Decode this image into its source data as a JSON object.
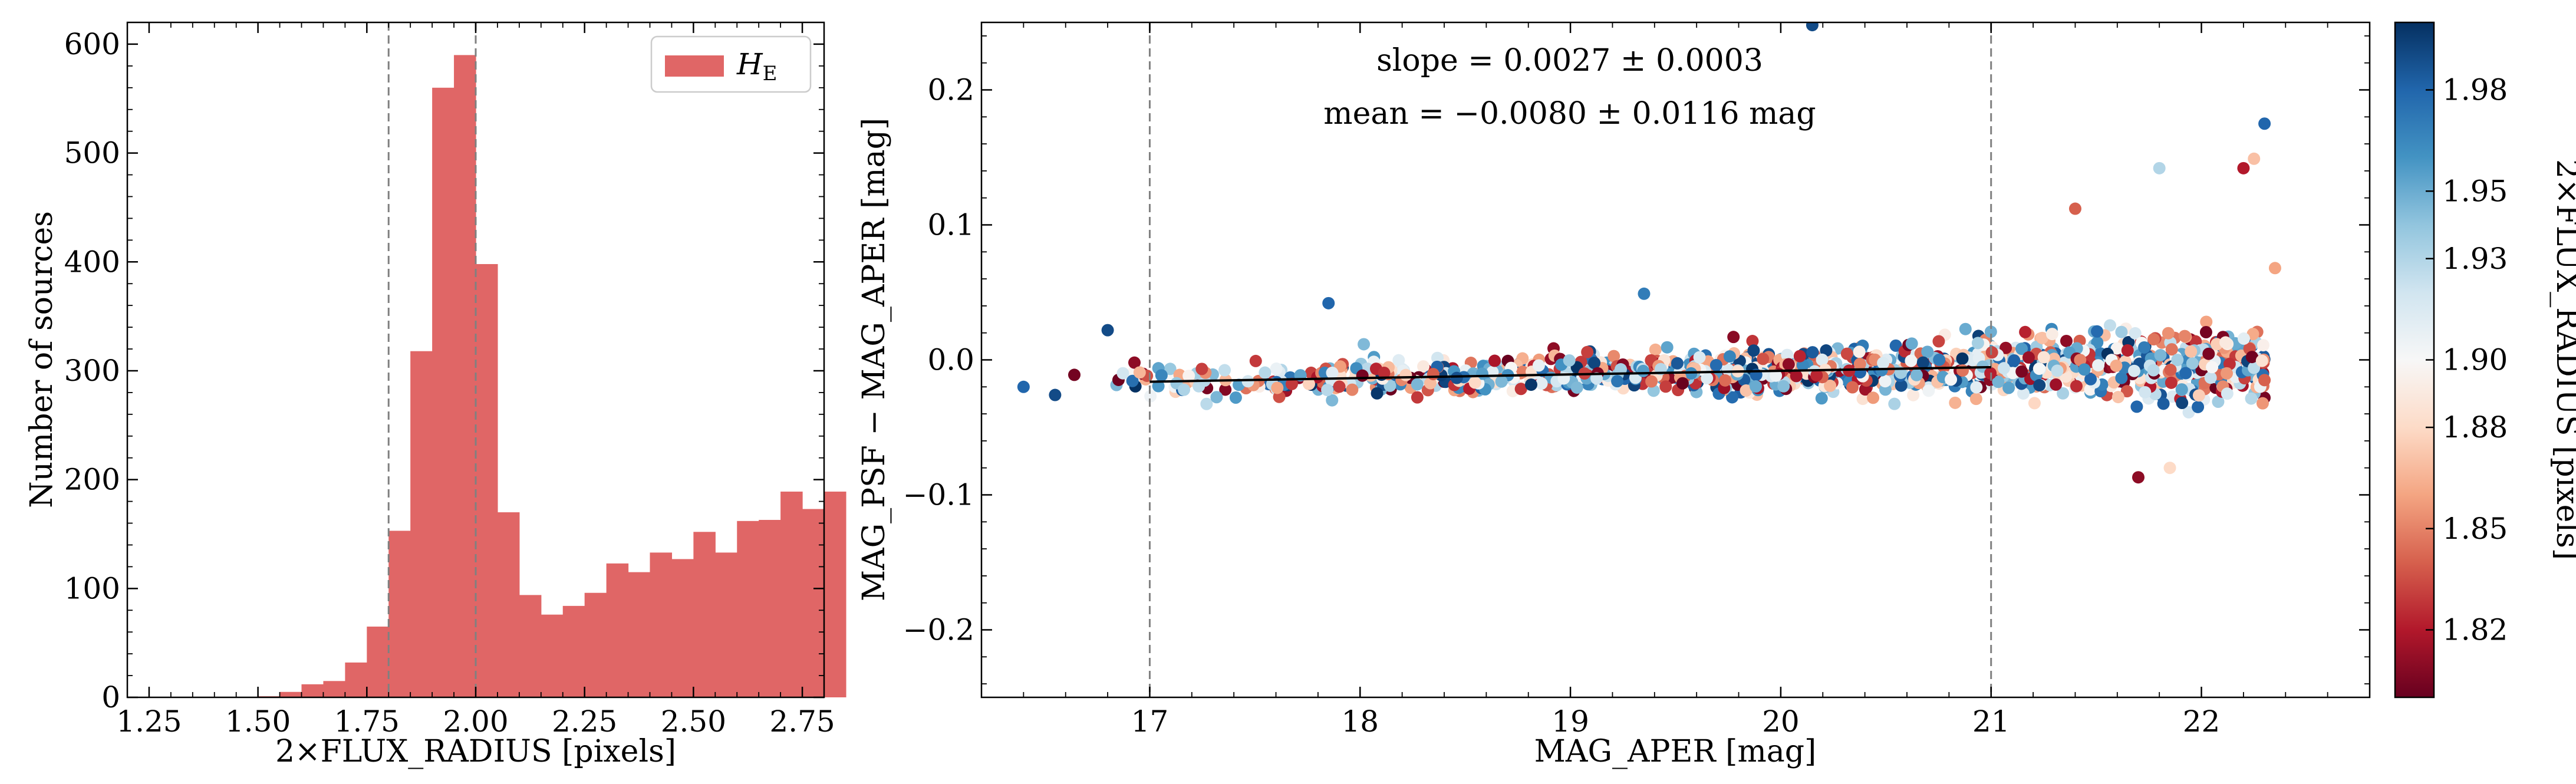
{
  "colors": {
    "hist_fill": "#e06666",
    "ref_line": "#808080",
    "fit_line": "#000000",
    "cmap": [
      "#67001f",
      "#b2182b",
      "#d6604d",
      "#f4a582",
      "#fddbc7",
      "#f7f7f7",
      "#d1e5f0",
      "#92c5de",
      "#4393c3",
      "#2166ac",
      "#053061"
    ]
  },
  "chart_data": [
    {
      "type": "bar",
      "name": "radius-histogram",
      "xlabel": "2×FLUX_RADIUS [pixels]",
      "ylabel": "Number of sources",
      "xlim": [
        1.2,
        2.8
      ],
      "ylim": [
        0,
        620
      ],
      "xticks": [
        1.25,
        1.5,
        1.75,
        2.0,
        2.25,
        2.5,
        2.75
      ],
      "xtick_labels": [
        "1.25",
        "1.50",
        "1.75",
        "2.00",
        "2.25",
        "2.50",
        "2.75"
      ],
      "yticks": [
        0,
        100,
        200,
        300,
        400,
        500,
        600
      ],
      "ytick_labels": [
        "0",
        "100",
        "200",
        "300",
        "400",
        "500",
        "600"
      ],
      "legend": {
        "label_main": "H",
        "label_sub": "E",
        "position": "top-right"
      },
      "bin_start": 1.2,
      "bin_width": 0.05,
      "values": [
        0,
        0,
        0,
        0,
        0,
        0,
        1,
        5,
        12,
        15,
        32,
        65,
        153,
        318,
        560,
        590,
        398,
        170,
        94,
        76,
        84,
        96,
        123,
        115,
        133,
        127,
        152,
        133,
        162,
        163,
        189,
        173,
        189
      ],
      "ref_lines_x": [
        1.8,
        2.0
      ]
    },
    {
      "type": "scatter",
      "name": "mag-scatter",
      "xlabel": "MAG_APER [mag]",
      "ylabel": "MAG_PSF − MAG_APER [mag]",
      "xlim": [
        16.2,
        22.8
      ],
      "ylim": [
        -0.25,
        0.25
      ],
      "xticks": [
        17,
        18,
        19,
        20,
        21,
        22
      ],
      "xtick_labels": [
        "17",
        "18",
        "19",
        "20",
        "21",
        "22"
      ],
      "yticks": [
        -0.2,
        -0.1,
        0.0,
        0.1,
        0.2
      ],
      "ytick_labels": [
        "−0.2",
        "−0.1",
        "0.0",
        "0.1",
        "0.2"
      ],
      "annotations": [
        "slope = 0.0027 ± 0.0003",
        "mean = −0.0080 ± 0.0116 mag"
      ],
      "ref_lines_x": [
        17,
        21
      ],
      "fit_line": {
        "x": [
          17,
          21
        ],
        "y": [
          -0.0162,
          -0.0054
        ]
      },
      "color_range": [
        1.8,
        2.0
      ],
      "highlight_points": [
        {
          "x": 20.15,
          "y": 0.248,
          "c": 1.99
        },
        {
          "x": 22.3,
          "y": 0.175,
          "c": 1.98
        },
        {
          "x": 16.8,
          "y": 0.022,
          "c": 1.99
        },
        {
          "x": 17.85,
          "y": 0.042,
          "c": 1.98
        },
        {
          "x": 19.35,
          "y": 0.049,
          "c": 1.97
        },
        {
          "x": 21.7,
          "y": -0.087,
          "c": 1.81
        },
        {
          "x": 21.4,
          "y": 0.112,
          "c": 1.84
        },
        {
          "x": 21.8,
          "y": 0.142,
          "c": 1.93
        },
        {
          "x": 22.2,
          "y": 0.142,
          "c": 1.82
        },
        {
          "x": 22.25,
          "y": 0.149,
          "c": 1.87
        },
        {
          "x": 16.4,
          "y": -0.02,
          "c": 1.98
        },
        {
          "x": 16.55,
          "y": -0.026,
          "c": 1.99
        },
        {
          "x": 22.35,
          "y": 0.068,
          "c": 1.86
        },
        {
          "x": 22.3,
          "y": -0.015,
          "c": 1.84
        },
        {
          "x": 21.85,
          "y": -0.08,
          "c": 1.88
        }
      ],
      "generated_points": {
        "count": 1400,
        "seed": 12345
      }
    },
    {
      "type": "colorbar",
      "name": "colorbar",
      "label": "2×FLUX_RADIUS [pixels]",
      "range": [
        1.8,
        2.0
      ],
      "ticks": [
        1.82,
        1.85,
        1.88,
        1.9,
        1.93,
        1.95,
        1.98
      ],
      "tick_labels": [
        "1.82",
        "1.85",
        "1.88",
        "1.90",
        "1.93",
        "1.95",
        "1.98"
      ]
    }
  ]
}
